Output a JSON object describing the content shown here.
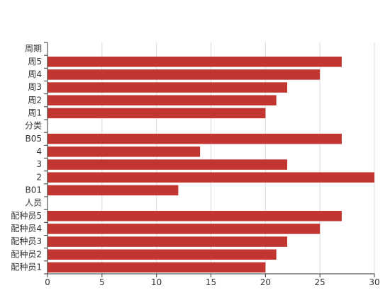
{
  "chart_data": {
    "type": "bar",
    "orientation": "horizontal",
    "categories": [
      "周期",
      "周5",
      "周4",
      "周3",
      "周2",
      "周1",
      "分类",
      "B05",
      "4",
      "3",
      "2",
      "B01",
      "人员",
      "配种员5",
      "配种员4",
      "配种员3",
      "配种员2",
      "配种员1"
    ],
    "values": [
      null,
      27,
      25,
      22,
      21,
      20,
      null,
      27,
      14,
      22,
      30,
      12,
      null,
      27,
      25,
      22,
      21,
      20
    ],
    "xlim": [
      0,
      30
    ],
    "xticks": [
      0,
      5,
      10,
      15,
      20,
      25,
      30
    ],
    "grid": true,
    "title": "",
    "xlabel": "",
    "ylabel": "",
    "bar_color": "#c23531"
  }
}
